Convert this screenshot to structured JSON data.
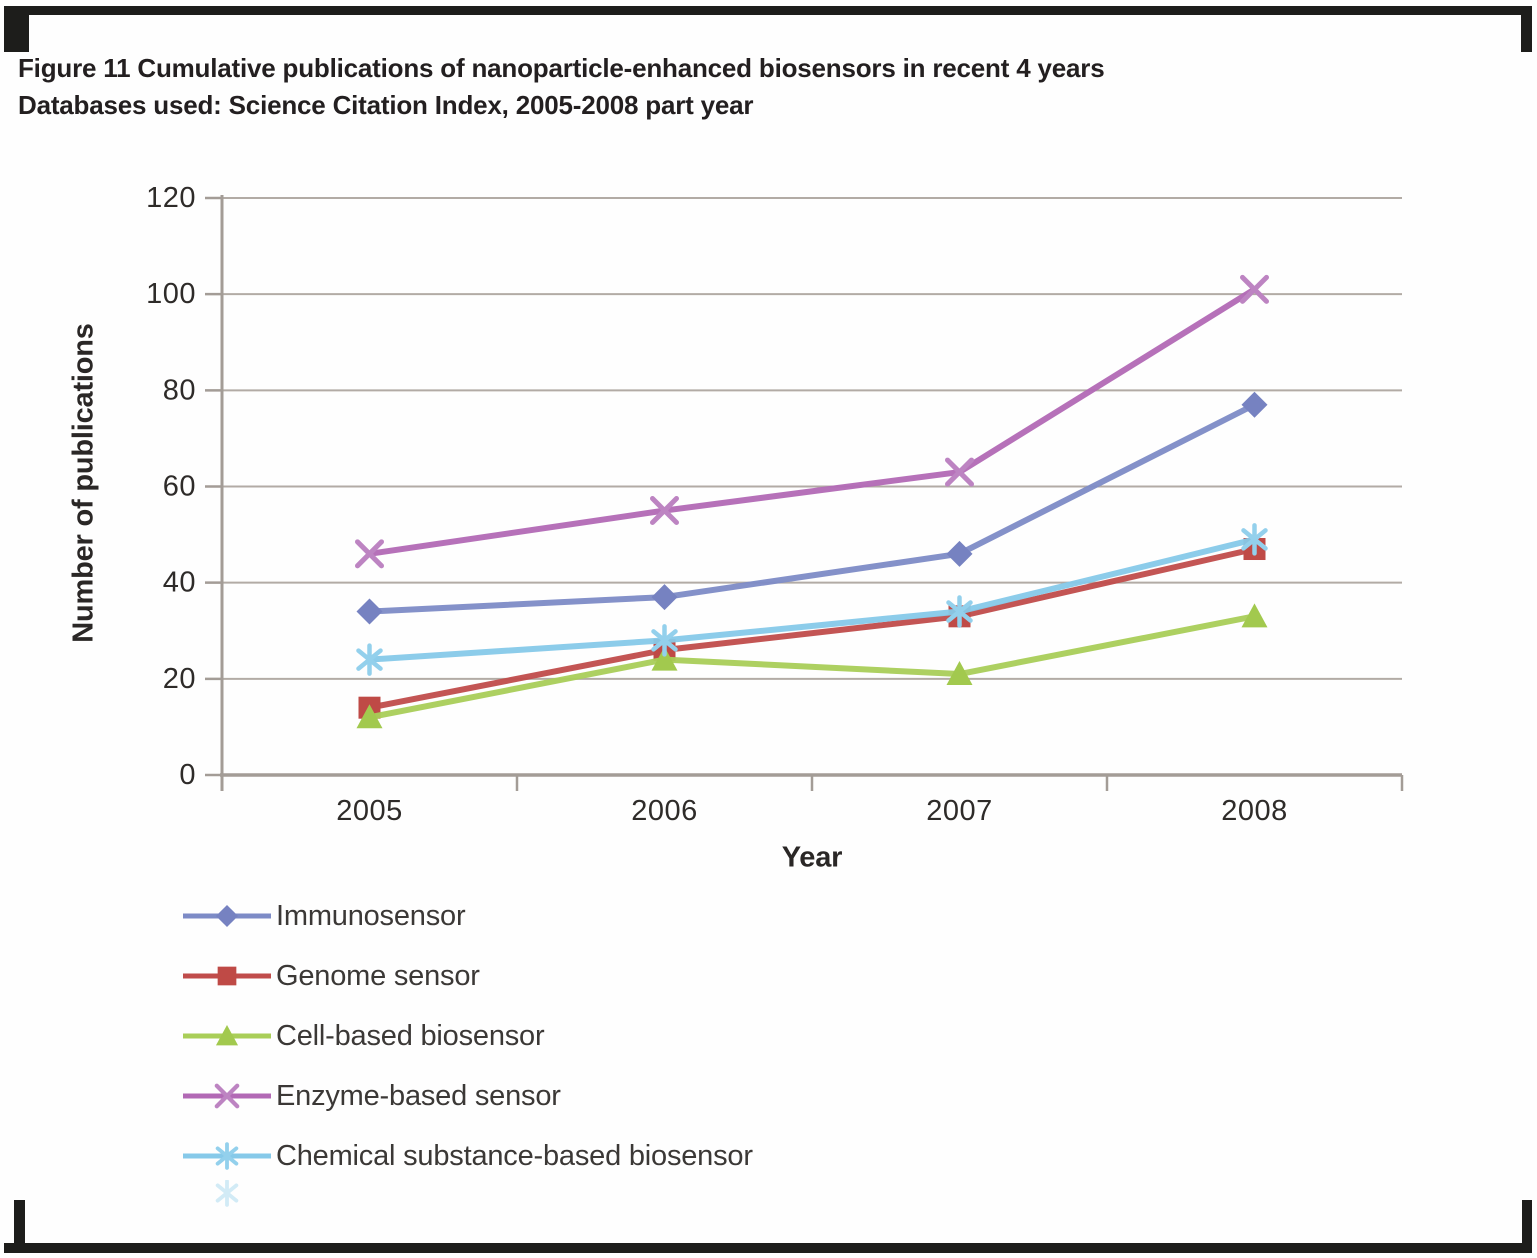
{
  "caption": {
    "line1": "Figure 11 Cumulative publications of nanoparticle-enhanced biosensors in recent 4 years",
    "line2": "Databases used: Science Citation Index, 2005-2008 part year"
  },
  "chart_data": {
    "type": "line",
    "title": "",
    "xlabel": "Year",
    "ylabel": "Number of publications",
    "categories": [
      "2005",
      "2006",
      "2007",
      "2008"
    ],
    "ylim": [
      0,
      120
    ],
    "ytick_step": 20,
    "yticks": [
      0,
      20,
      40,
      60,
      80,
      100,
      120
    ],
    "grid": true,
    "legend_position": "bottom-left",
    "series": [
      {
        "name": "Immunosensor",
        "marker": "diamond",
        "color": "#7d8bc6",
        "marker_color": "#7682c1",
        "values": [
          34,
          37,
          46,
          77
        ]
      },
      {
        "name": "Genome sensor",
        "marker": "square",
        "color": "#c04c4b",
        "marker_color": "#bf4a46",
        "values": [
          14,
          26,
          33,
          47
        ]
      },
      {
        "name": "Cell-based biosensor",
        "marker": "triangle",
        "color": "#a9ce58",
        "marker_color": "#a2c94e",
        "values": [
          12,
          24,
          21,
          33
        ]
      },
      {
        "name": "Enzyme-based sensor",
        "marker": "x",
        "color": "#b269b5",
        "marker_color": "#bd84c2",
        "values": [
          46,
          55,
          63,
          101
        ]
      },
      {
        "name": "Chemical substance-based biosensor",
        "marker": "asterisk",
        "color": "#86c9e9",
        "marker_color": "#93d0ec",
        "values": [
          24,
          28,
          34,
          49
        ]
      }
    ]
  }
}
